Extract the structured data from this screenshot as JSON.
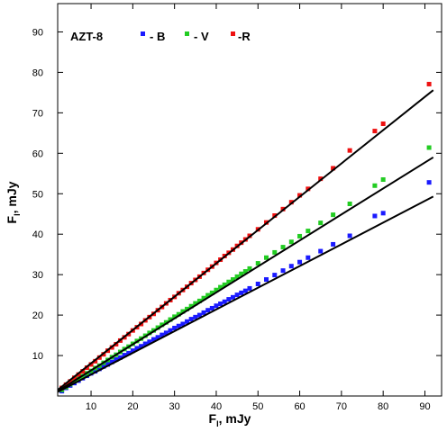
{
  "chart_data": {
    "type": "scatter",
    "title": "",
    "legend_label": "AZT-8",
    "legend_position": "top-left",
    "xlabel_main": "F",
    "xlabel_sub": "I",
    "xlabel_rest": ", mJy",
    "ylabel_main": "F",
    "ylabel_sub": "I",
    "ylabel_rest": ", mJy",
    "xlim": [
      2,
      94
    ],
    "ylim": [
      0,
      97
    ],
    "xticks": [
      10,
      20,
      30,
      40,
      50,
      60,
      70,
      80,
      90
    ],
    "yticks": [
      10,
      20,
      30,
      40,
      50,
      60,
      70,
      80,
      90
    ],
    "grid": false,
    "fit_color": "#000000",
    "series": [
      {
        "name": "- B",
        "color": "#1a1aff",
        "x": [
          3,
          4,
          5,
          6,
          7,
          8,
          9,
          10,
          11,
          12,
          13,
          14,
          15,
          16,
          17,
          18,
          19,
          20,
          21,
          22,
          23,
          24,
          25,
          26,
          27,
          28,
          29,
          30,
          31,
          32,
          33,
          34,
          35,
          36,
          37,
          38,
          39,
          40,
          41,
          42,
          43,
          44,
          45,
          46,
          47,
          48,
          50,
          52,
          54,
          56,
          58,
          60,
          62,
          65,
          68,
          72,
          78,
          80,
          91
        ],
        "y": [
          1.2,
          2.0,
          2.6,
          3.2,
          3.8,
          4.4,
          5.0,
          5.6,
          6.1,
          6.7,
          7.3,
          7.8,
          8.4,
          9.0,
          9.5,
          10.1,
          10.6,
          11.2,
          11.8,
          12.3,
          12.9,
          13.4,
          14.0,
          14.5,
          15.1,
          15.6,
          16.2,
          16.8,
          17.3,
          17.8,
          18.4,
          19.0,
          19.5,
          20.0,
          20.6,
          21.2,
          21.7,
          22.3,
          22.8,
          23.3,
          23.9,
          24.4,
          25.0,
          25.5,
          26.0,
          26.6,
          27.7,
          28.8,
          29.9,
          31.0,
          32.1,
          33.1,
          34.2,
          35.8,
          37.5,
          39.6,
          44.5,
          45.2,
          52.8
        ],
        "fit": [
          [
            2,
            1.0
          ],
          [
            92,
            49.3
          ]
        ]
      },
      {
        "name": "- V",
        "color": "#22cc22",
        "x": [
          3,
          4,
          5,
          6,
          7,
          8,
          9,
          10,
          11,
          12,
          13,
          14,
          15,
          16,
          17,
          18,
          19,
          20,
          21,
          22,
          23,
          24,
          25,
          26,
          27,
          28,
          29,
          30,
          31,
          32,
          33,
          34,
          35,
          36,
          37,
          38,
          39,
          40,
          41,
          42,
          43,
          44,
          45,
          46,
          47,
          48,
          50,
          52,
          54,
          56,
          58,
          60,
          62,
          65,
          68,
          72,
          78,
          80,
          91
        ],
        "y": [
          1.5,
          2.2,
          2.9,
          3.6,
          4.2,
          4.9,
          5.6,
          6.2,
          6.9,
          7.5,
          8.2,
          8.9,
          9.6,
          10.2,
          10.9,
          11.6,
          12.2,
          12.9,
          13.6,
          14.2,
          14.9,
          15.6,
          16.2,
          16.9,
          17.6,
          18.2,
          18.9,
          19.6,
          20.2,
          20.9,
          21.5,
          22.2,
          22.9,
          23.5,
          24.2,
          24.9,
          25.5,
          26.2,
          26.9,
          27.5,
          28.2,
          28.8,
          29.5,
          30.2,
          30.8,
          31.5,
          32.8,
          34.2,
          35.5,
          36.8,
          38.1,
          39.5,
          40.8,
          42.8,
          44.8,
          47.5,
          52.0,
          53.5,
          61.4
        ],
        "fit": [
          [
            2,
            1.2
          ],
          [
            92,
            59.0
          ]
        ]
      },
      {
        "name": "-R",
        "color": "#ee1111",
        "x": [
          3,
          4,
          5,
          6,
          7,
          8,
          9,
          10,
          11,
          12,
          13,
          14,
          15,
          16,
          17,
          18,
          19,
          20,
          21,
          22,
          23,
          24,
          25,
          26,
          27,
          28,
          29,
          30,
          31,
          32,
          33,
          34,
          35,
          36,
          37,
          38,
          39,
          40,
          41,
          42,
          43,
          44,
          45,
          46,
          47,
          48,
          50,
          52,
          54,
          56,
          58,
          60,
          62,
          65,
          68,
          72,
          78,
          80,
          91
        ],
        "y": [
          2.0,
          2.8,
          3.6,
          4.5,
          5.3,
          6.1,
          7.0,
          7.8,
          8.6,
          9.5,
          10.3,
          11.2,
          12.0,
          12.8,
          13.7,
          14.5,
          15.3,
          16.2,
          17.0,
          17.8,
          18.7,
          19.5,
          20.3,
          21.2,
          22.0,
          22.9,
          23.7,
          24.5,
          25.4,
          26.2,
          27.0,
          27.9,
          28.7,
          29.5,
          30.4,
          31.2,
          32.0,
          32.9,
          33.7,
          34.6,
          35.4,
          36.2,
          37.1,
          37.9,
          38.7,
          39.6,
          41.2,
          42.9,
          44.6,
          46.2,
          47.9,
          49.6,
          51.2,
          53.7,
          56.3,
          60.7,
          65.5,
          67.3,
          77.1
        ],
        "fit": [
          [
            2,
            1.5
          ],
          [
            92,
            75.6
          ]
        ]
      }
    ]
  }
}
